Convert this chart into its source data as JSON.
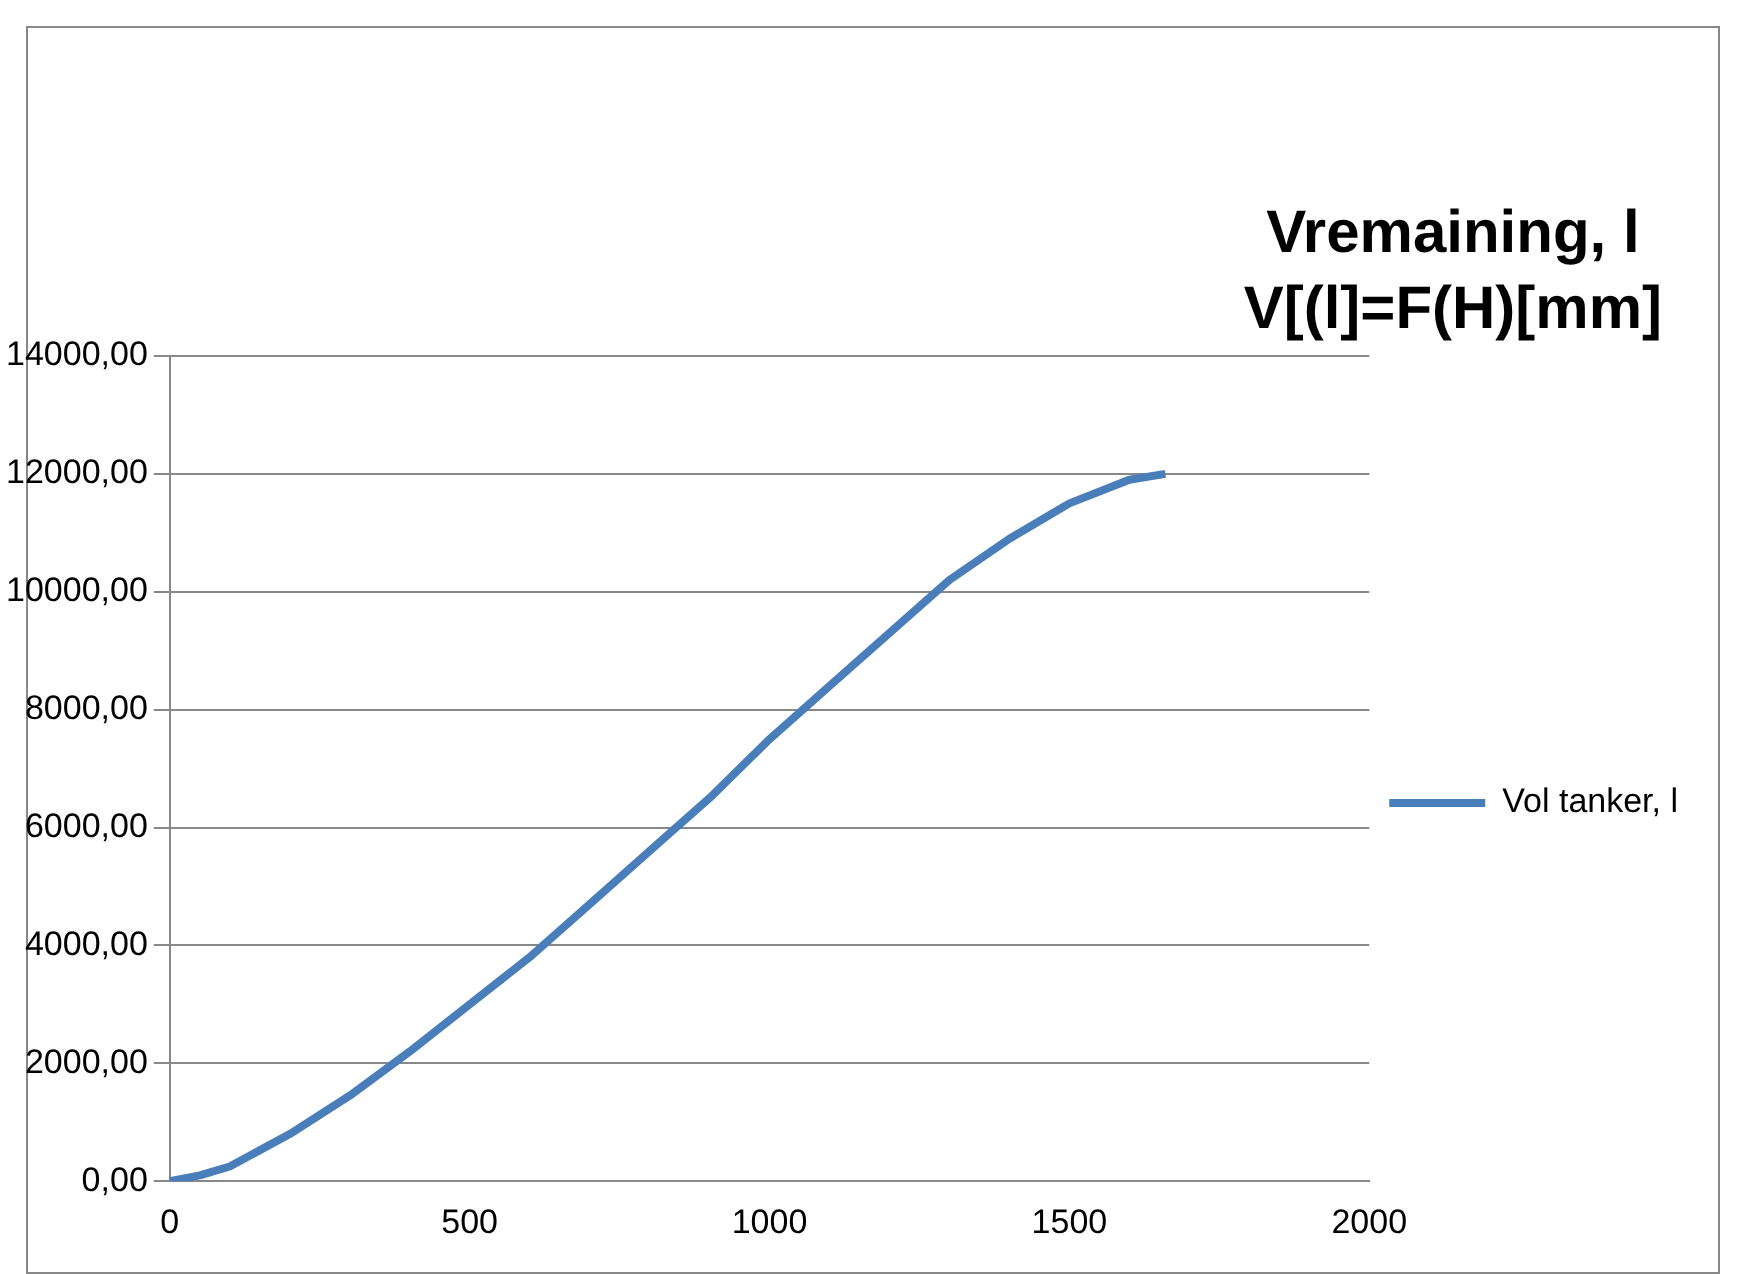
{
  "chart_data": {
    "type": "line",
    "title": "Vremaining, l\nV[(l]=F(H)[mm]",
    "x": [
      0,
      50,
      100,
      200,
      300,
      400,
      500,
      600,
      700,
      800,
      900,
      1000,
      1100,
      1200,
      1300,
      1400,
      1500,
      1600,
      1660
    ],
    "series": [
      {
        "name": "Vol tanker, l",
        "color": "#4a7ebb",
        "values": [
          0,
          100,
          250,
          800,
          1450,
          2200,
          3000,
          3800,
          4700,
          5600,
          6500,
          7500,
          8400,
          9300,
          10200,
          10900,
          11500,
          11900,
          12000
        ]
      }
    ],
    "xlim": [
      0,
      2000
    ],
    "xticks": [
      0,
      500,
      1000,
      1500,
      2000
    ],
    "ylim": [
      0,
      14000
    ],
    "yticks": [
      {
        "value": 0,
        "label": "0,00"
      },
      {
        "value": 2000,
        "label": "2000,00"
      },
      {
        "value": 4000,
        "label": "4000,00"
      },
      {
        "value": 6000,
        "label": "6000,00"
      },
      {
        "value": 8000,
        "label": "8000,00"
      },
      {
        "value": 10000,
        "label": "10000,00"
      },
      {
        "value": 12000,
        "label": "12000,00"
      },
      {
        "value": 14000,
        "label": "14000,00"
      }
    ],
    "grid": "y",
    "legend": "right",
    "marker": "none",
    "line_style": "solid"
  }
}
